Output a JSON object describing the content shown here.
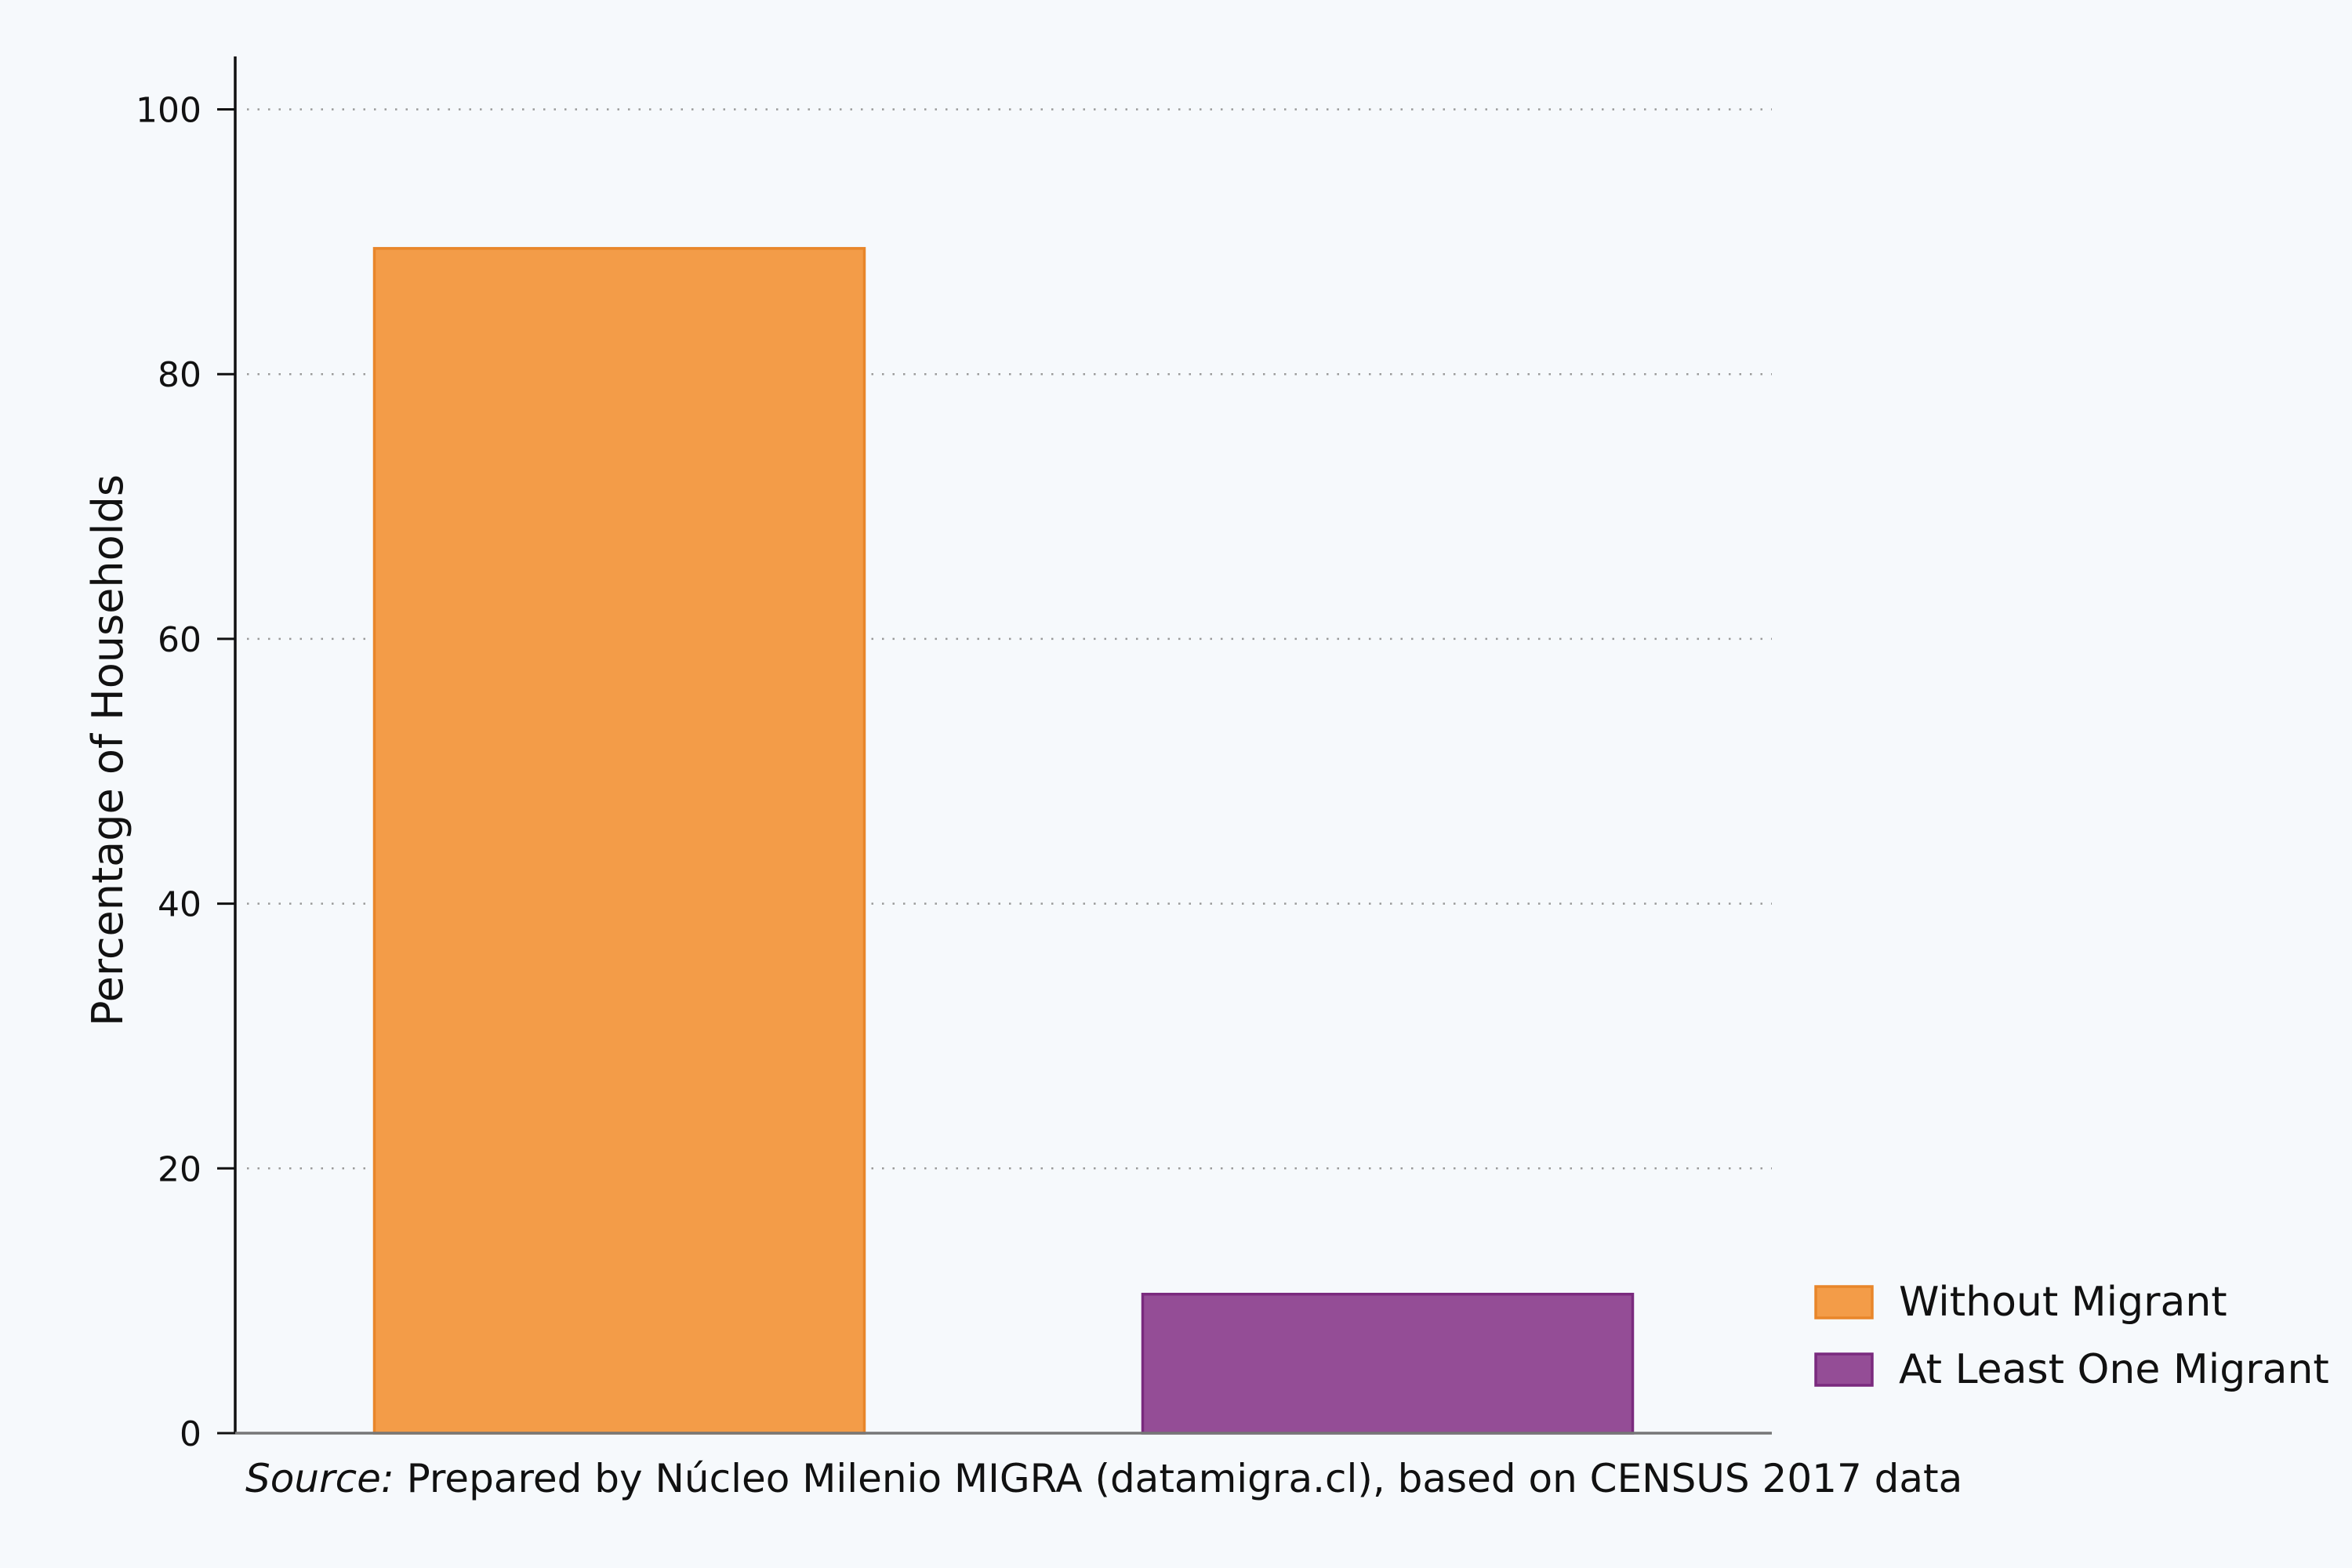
{
  "chart_data": {
    "type": "bar",
    "categories": [
      "Without Migrant",
      "At Least One Migrant"
    ],
    "values": [
      89.5,
      10.5
    ],
    "ylabel": "Percentage of Households",
    "xlabel": "",
    "ylim": [
      0,
      104
    ],
    "yticks": [
      0,
      20,
      40,
      60,
      80,
      100
    ],
    "grid": "horizontal dotted",
    "legend": {
      "position": "bottom-right",
      "entries": [
        "Without Migrant",
        "At Least One Migrant"
      ]
    },
    "colors": [
      "#f39c48",
      "#944d96"
    ],
    "edge_colors": [
      "#e8862a",
      "#7a2a7e"
    ]
  },
  "source": {
    "prefix": "Source:",
    "text": " Prepared by Núcleo Milenio MIGRA (datamigra.cl), based on CENSUS 2017 data"
  }
}
